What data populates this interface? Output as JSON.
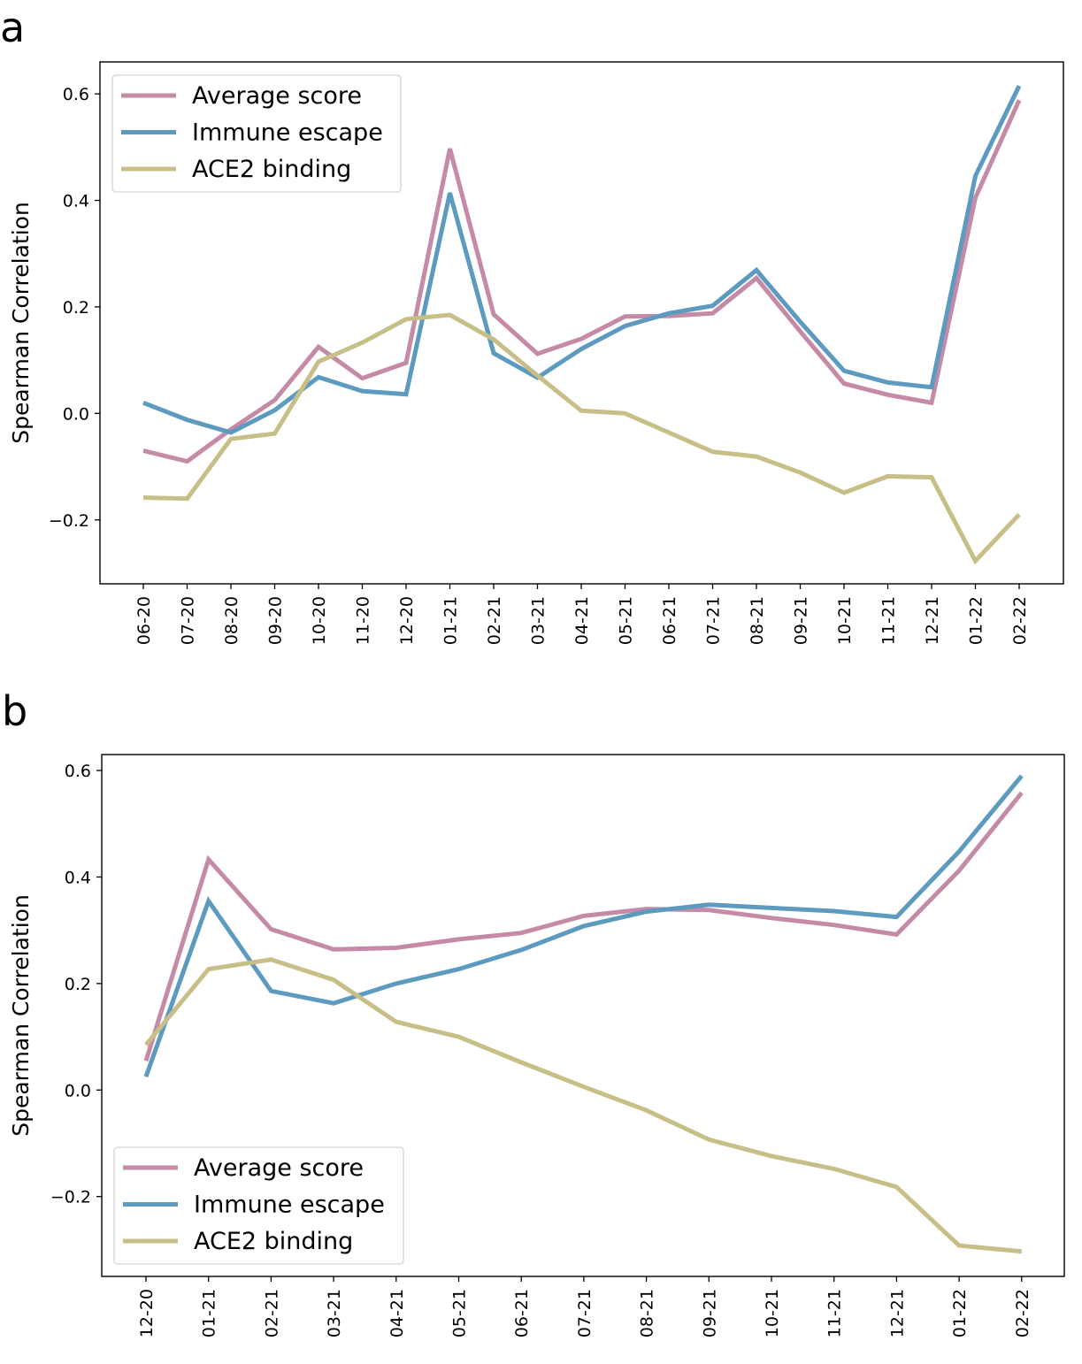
{
  "chart_data": [
    {
      "panel": "a",
      "type": "line",
      "ylabel": "Spearman Correlation",
      "xlabel": "",
      "ylim": [
        -0.32,
        0.66
      ],
      "yticks": [
        "−0.2",
        "0.0",
        "0.2",
        "0.4",
        "0.6"
      ],
      "ytick_values": [
        -0.2,
        0.0,
        0.2,
        0.4,
        0.6
      ],
      "categories": [
        "06-20",
        "07-20",
        "08-20",
        "09-20",
        "10-20",
        "11-20",
        "12-20",
        "01-21",
        "02-21",
        "03-21",
        "04-21",
        "05-21",
        "06-21",
        "07-21",
        "08-21",
        "09-21",
        "10-21",
        "11-21",
        "12-21",
        "01-22",
        "02-22"
      ],
      "grid": false,
      "legend": "top-left",
      "series": [
        {
          "name": "Average score",
          "color": "#c48aa6",
          "values": [
            -0.07,
            -0.09,
            -0.03,
            0.025,
            0.125,
            0.066,
            0.095,
            0.497,
            0.186,
            0.112,
            0.14,
            0.182,
            0.183,
            0.188,
            0.254,
            0.154,
            0.056,
            0.035,
            0.02,
            0.405,
            0.588
          ]
        },
        {
          "name": "Immune escape",
          "color": "#5c9ac0",
          "values": [
            0.02,
            -0.012,
            -0.036,
            0.006,
            0.068,
            0.042,
            0.036,
            0.414,
            0.113,
            0.067,
            0.121,
            0.164,
            0.188,
            0.202,
            0.269,
            0.172,
            0.08,
            0.058,
            0.049,
            0.446,
            0.615
          ]
        },
        {
          "name": "ACE2 binding",
          "color": "#c7bf87",
          "values": [
            -0.158,
            -0.16,
            -0.048,
            -0.038,
            0.097,
            0.133,
            0.177,
            0.185,
            0.139,
            0.071,
            0.005,
            0.0,
            -0.036,
            -0.072,
            -0.081,
            -0.111,
            -0.149,
            -0.118,
            -0.12,
            -0.277,
            -0.19
          ]
        }
      ]
    },
    {
      "panel": "b",
      "type": "line",
      "ylabel": "Spearman Correlation",
      "xlabel": "",
      "ylim": [
        -0.35,
        0.63
      ],
      "yticks": [
        "−0.2",
        "0.0",
        "0.2",
        "0.4",
        "0.6"
      ],
      "ytick_values": [
        -0.2,
        0.0,
        0.2,
        0.4,
        0.6
      ],
      "categories": [
        "12-20",
        "01-21",
        "02-21",
        "03-21",
        "04-21",
        "05-21",
        "06-21",
        "07-21",
        "08-21",
        "09-21",
        "10-21",
        "11-21",
        "12-21",
        "01-22",
        "02-22"
      ],
      "grid": false,
      "legend": "bottom-left",
      "series": [
        {
          "name": "Average score",
          "color": "#c48aa6",
          "values": [
            0.055,
            0.433,
            0.302,
            0.264,
            0.267,
            0.283,
            0.295,
            0.327,
            0.34,
            0.338,
            0.323,
            0.31,
            0.292,
            0.412,
            0.558
          ]
        },
        {
          "name": "Immune escape",
          "color": "#5c9ac0",
          "values": [
            0.025,
            0.355,
            0.186,
            0.163,
            0.2,
            0.227,
            0.263,
            0.308,
            0.335,
            0.348,
            0.342,
            0.336,
            0.325,
            0.448,
            0.59
          ]
        },
        {
          "name": "ACE2 binding",
          "color": "#c7bf87",
          "values": [
            0.085,
            0.227,
            0.245,
            0.207,
            0.128,
            0.1,
            0.052,
            0.006,
            -0.038,
            -0.093,
            -0.124,
            -0.148,
            -0.182,
            -0.292,
            -0.303
          ]
        }
      ]
    }
  ]
}
